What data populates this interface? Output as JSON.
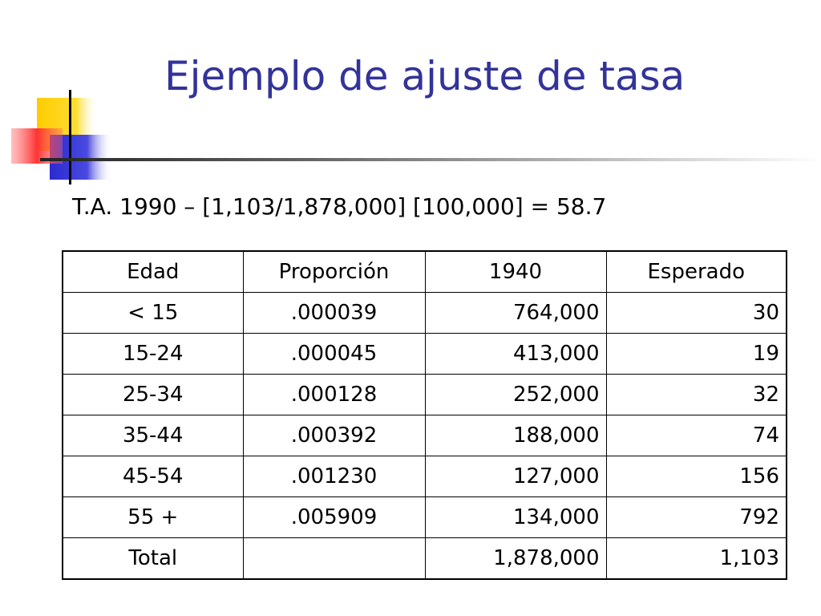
{
  "slide": {
    "title": "Ejemplo de ajuste de tasa",
    "formula": "T.A. 1990 – [1,103/1,878,000] [100,000] = 58.7"
  },
  "table": {
    "headers": [
      "Edad",
      "Proporción",
      "1940",
      "Esperado"
    ],
    "rows": [
      [
        "< 15",
        ".000039",
        "764,000",
        "30"
      ],
      [
        "15-24",
        ".000045",
        "413,000",
        "19"
      ],
      [
        "25-34",
        ".000128",
        "252,000",
        "32"
      ],
      [
        "35-44",
        ".000392",
        "188,000",
        "74"
      ],
      [
        "45-54",
        ".001230",
        "127,000",
        "156"
      ],
      [
        "55 +",
        ".005909",
        "134,000",
        "792"
      ],
      [
        "Total",
        "",
        "1,878,000",
        "1,103"
      ]
    ]
  },
  "colors": {
    "title": "#333399",
    "deco_yellow": "#ffcc00",
    "deco_blue": "#3333cc",
    "deco_red": "#ff3333",
    "deco_line": "#000000"
  }
}
